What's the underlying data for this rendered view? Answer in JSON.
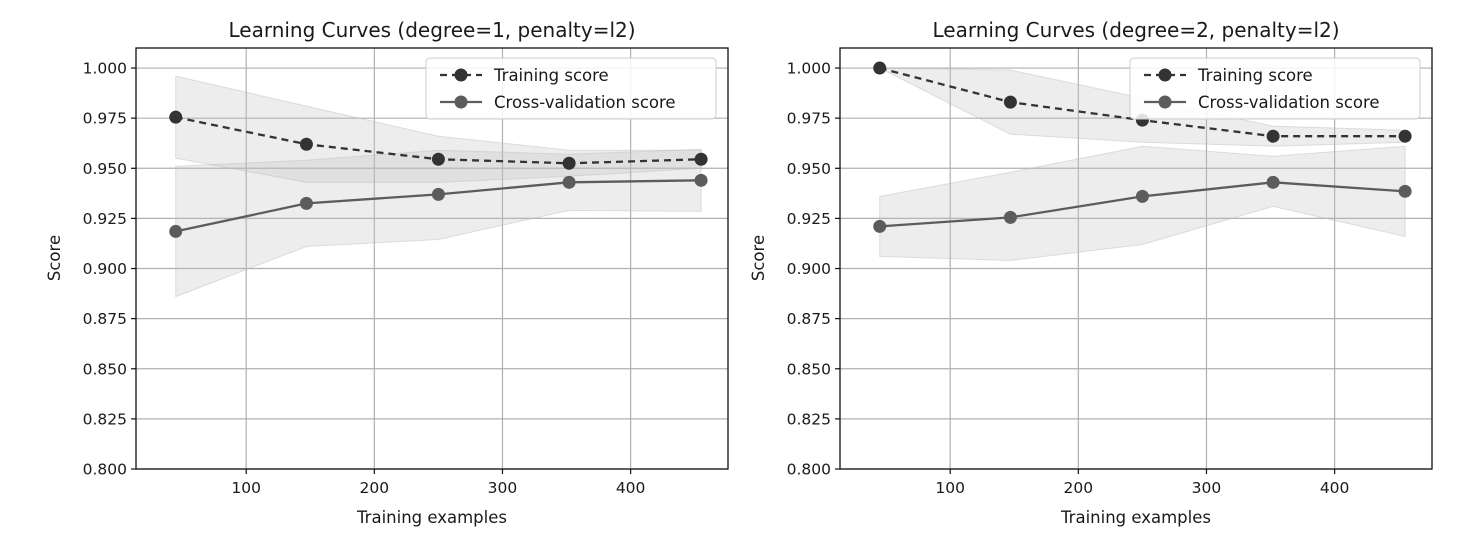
{
  "chart_data": [
    {
      "type": "line",
      "title": "Learning Curves (degree=1, penalty=l2)",
      "xlabel": "Training examples",
      "ylabel": "Score",
      "xlim": [
        14,
        476
      ],
      "ylim": [
        0.8,
        1.01
      ],
      "xticks": [
        100,
        200,
        300,
        400
      ],
      "xtick_labels": [
        "100",
        "200",
        "300",
        "400"
      ],
      "yticks": [
        0.8,
        0.825,
        0.85,
        0.875,
        0.9,
        0.925,
        0.95,
        0.975,
        1.0
      ],
      "ytick_labels": [
        "0.800",
        "0.825",
        "0.850",
        "0.875",
        "0.900",
        "0.925",
        "0.950",
        "0.975",
        "1.000"
      ],
      "grid": true,
      "legend_position": "top-right",
      "x": [
        45,
        147,
        250,
        352,
        455
      ],
      "series": [
        {
          "name": "Training score",
          "style": "dashed",
          "color": "#333333",
          "values": [
            0.9755,
            0.962,
            0.9545,
            0.9525,
            0.9545
          ],
          "band_lower": [
            0.955,
            0.943,
            0.943,
            0.946,
            0.95
          ],
          "band_upper": [
            0.996,
            0.981,
            0.966,
            0.959,
            0.959
          ]
        },
        {
          "name": "Cross-validation score",
          "style": "solid",
          "color": "#5c5c5c",
          "values": [
            0.9185,
            0.9325,
            0.937,
            0.943,
            0.944
          ],
          "band_lower": [
            0.886,
            0.911,
            0.9145,
            0.929,
            0.9285
          ],
          "band_upper": [
            0.951,
            0.954,
            0.959,
            0.957,
            0.9595
          ]
        }
      ]
    },
    {
      "type": "line",
      "title": "Learning Curves (degree=2, penalty=l2)",
      "xlabel": "Training examples",
      "ylabel": "Score",
      "xlim": [
        14,
        476
      ],
      "ylim": [
        0.8,
        1.01
      ],
      "xticks": [
        100,
        200,
        300,
        400
      ],
      "xtick_labels": [
        "100",
        "200",
        "300",
        "400"
      ],
      "yticks": [
        0.8,
        0.825,
        0.85,
        0.875,
        0.9,
        0.925,
        0.95,
        0.975,
        1.0
      ],
      "ytick_labels": [
        "0.800",
        "0.825",
        "0.850",
        "0.875",
        "0.900",
        "0.925",
        "0.950",
        "0.975",
        "1.000"
      ],
      "grid": true,
      "legend_position": "top-right",
      "x": [
        45,
        147,
        250,
        352,
        455
      ],
      "series": [
        {
          "name": "Training score",
          "style": "dashed",
          "color": "#333333",
          "values": [
            1.0,
            0.983,
            0.974,
            0.966,
            0.966
          ],
          "band_lower": [
            1.0,
            0.967,
            0.963,
            0.961,
            0.963
          ],
          "band_upper": [
            1.0,
            0.999,
            0.985,
            0.971,
            0.969
          ]
        },
        {
          "name": "Cross-validation score",
          "style": "solid",
          "color": "#5c5c5c",
          "values": [
            0.921,
            0.9255,
            0.936,
            0.943,
            0.9385
          ],
          "band_lower": [
            0.906,
            0.904,
            0.912,
            0.931,
            0.916
          ],
          "band_upper": [
            0.936,
            0.948,
            0.961,
            0.956,
            0.961
          ]
        }
      ]
    }
  ]
}
